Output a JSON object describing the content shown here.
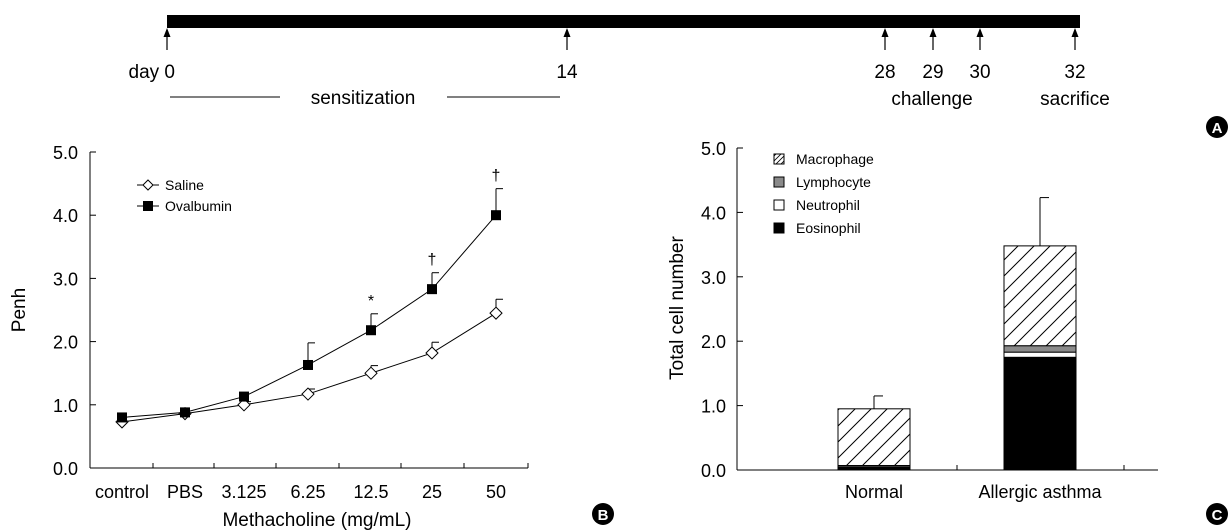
{
  "timeline": {
    "events": [
      {
        "day": 0,
        "label": "day 0"
      },
      {
        "day": 14,
        "label": "14"
      },
      {
        "day": 28,
        "label": "28"
      },
      {
        "day": 29,
        "label": "29"
      },
      {
        "day": 30,
        "label": "30"
      },
      {
        "day": 32,
        "label": "32"
      }
    ],
    "sensitization_label": "sensitization",
    "challenge_label": "challenge",
    "sacrifice_label": "sacrifice"
  },
  "panels": {
    "a": "A",
    "b": "B",
    "c": "C"
  },
  "chart_data": [
    {
      "type": "line",
      "xlabel": "Methacholine (mg/mL)",
      "ylabel": "Penh",
      "categories": [
        "control",
        "PBS",
        "3.125",
        "6.25",
        "12.5",
        "25",
        "50"
      ],
      "ylim": [
        0,
        5
      ],
      "yticks": [
        "0.0",
        "1.0",
        "2.0",
        "3.0",
        "4.0",
        "5.0"
      ],
      "legend_position": "top-left",
      "series": [
        {
          "name": "Saline",
          "marker": "diamond-open",
          "values": [
            0.73,
            0.86,
            1.0,
            1.17,
            1.5,
            1.82,
            2.45
          ],
          "error": [
            0,
            0,
            0.05,
            0.08,
            0.12,
            0.17,
            0.22
          ]
        },
        {
          "name": "Ovalbumin",
          "marker": "square-filled",
          "values": [
            0.8,
            0.88,
            1.13,
            1.63,
            2.18,
            2.83,
            4.0
          ],
          "error": [
            0,
            0,
            0,
            0.35,
            0.26,
            0.26,
            0.42
          ]
        }
      ],
      "annotations": [
        {
          "category": "12.5",
          "text": "*"
        },
        {
          "category": "25",
          "text": "†"
        },
        {
          "category": "50",
          "text": "†"
        }
      ]
    },
    {
      "type": "bar",
      "stacked": true,
      "ylabel": "Total cell number",
      "categories": [
        "Normal",
        "Allergic asthma"
      ],
      "ylim": [
        0,
        5
      ],
      "yticks": [
        "0.0",
        "1.0",
        "2.0",
        "3.0",
        "4.0",
        "5.0"
      ],
      "legend_position": "top-left",
      "series": [
        {
          "name": "Eosinophil",
          "fill": "solid-black",
          "values": [
            0.04,
            1.75
          ]
        },
        {
          "name": "Neutrophil",
          "fill": "white",
          "values": [
            0.02,
            0.08
          ]
        },
        {
          "name": "Lymphocyte",
          "fill": "gray",
          "values": [
            0.01,
            0.1
          ]
        },
        {
          "name": "Macrophage",
          "fill": "hatched",
          "values": [
            0.88,
            1.55
          ]
        }
      ],
      "legend_order": [
        "Macrophage",
        "Lymphocyte",
        "Neutrophil",
        "Eosinophil"
      ],
      "error_top": [
        0.2,
        0.75
      ]
    }
  ]
}
